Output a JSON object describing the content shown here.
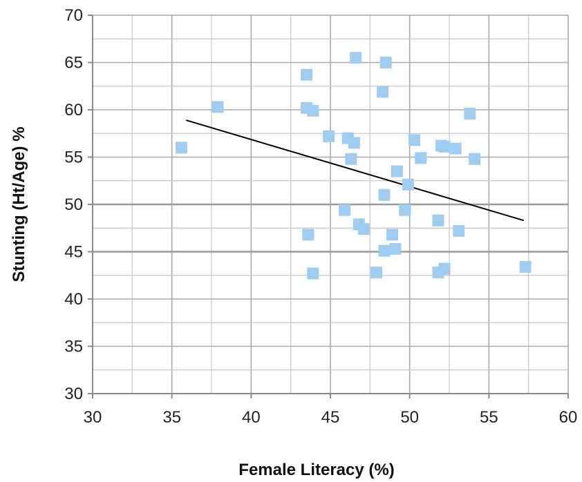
{
  "chart_data": {
    "type": "scatter",
    "title": "",
    "xlabel": "Female Literacy (%)",
    "ylabel": "Stunting (Ht/Age) %",
    "xlim": [
      30,
      60
    ],
    "ylim": [
      30,
      70
    ],
    "x_ticks": [
      30,
      35,
      40,
      45,
      50,
      55,
      60
    ],
    "y_ticks": [
      30,
      35,
      40,
      45,
      50,
      55,
      60,
      65,
      70
    ],
    "x_tick_labels": [
      "30",
      "35",
      "40",
      "45",
      "50",
      "55",
      "60"
    ],
    "y_tick_labels": [
      "30",
      "35",
      "40",
      "45",
      "50",
      "55",
      "60",
      "65",
      "70"
    ],
    "x_minor_step": 2.5,
    "y_minor_step": 2.5,
    "grid": true,
    "legend": "none",
    "marker": "square",
    "marker_color": "#9fcdf2",
    "trendline_color": "#000000",
    "grid_color": "#c7c7c7",
    "major_grid_color": "#a9a9a9",
    "series": [
      {
        "points": [
          [
            35.6,
            56.0
          ],
          [
            37.9,
            60.3
          ],
          [
            43.5,
            63.7
          ],
          [
            43.5,
            60.2
          ],
          [
            43.9,
            59.9
          ],
          [
            43.6,
            46.8
          ],
          [
            43.9,
            42.7
          ],
          [
            44.9,
            57.2
          ],
          [
            45.9,
            49.4
          ],
          [
            46.1,
            57.0
          ],
          [
            46.3,
            54.8
          ],
          [
            46.5,
            56.5
          ],
          [
            46.6,
            65.5
          ],
          [
            46.8,
            47.9
          ],
          [
            47.1,
            47.4
          ],
          [
            47.9,
            42.8
          ],
          [
            48.3,
            61.9
          ],
          [
            48.4,
            51.0
          ],
          [
            48.4,
            45.1
          ],
          [
            48.5,
            65.0
          ],
          [
            48.9,
            46.8
          ],
          [
            49.1,
            45.3
          ],
          [
            49.2,
            53.5
          ],
          [
            49.7,
            49.4
          ],
          [
            49.9,
            52.1
          ],
          [
            50.3,
            56.8
          ],
          [
            50.7,
            54.9
          ],
          [
            51.8,
            48.3
          ],
          [
            51.8,
            42.8
          ],
          [
            52.0,
            56.2
          ],
          [
            52.2,
            56.1
          ],
          [
            52.2,
            43.2
          ],
          [
            52.9,
            55.9
          ],
          [
            53.1,
            47.2
          ],
          [
            53.8,
            59.6
          ],
          [
            54.1,
            54.8
          ],
          [
            57.3,
            43.4
          ]
        ]
      }
    ],
    "trendline": {
      "x": [
        35.9,
        57.2
      ],
      "y": [
        58.9,
        48.3
      ]
    }
  }
}
